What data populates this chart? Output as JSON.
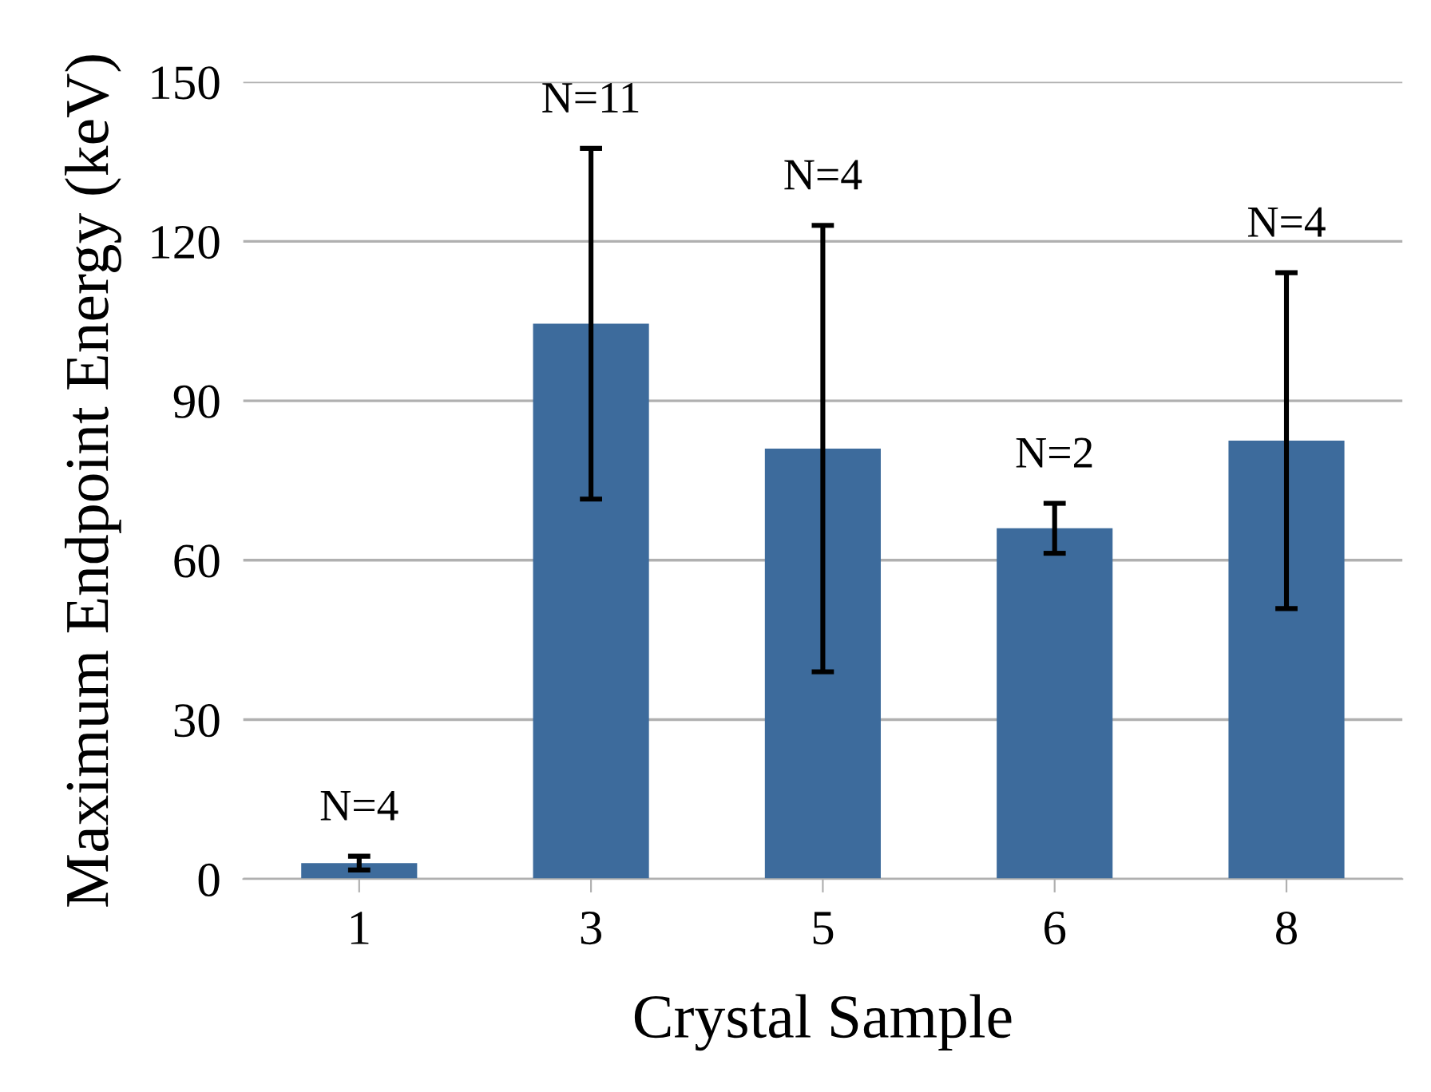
{
  "chart_data": {
    "type": "bar",
    "xlabel": "Crystal Sample",
    "ylabel": "Maximum Endpoint Energy (keV)",
    "categories": [
      "1",
      "3",
      "5",
      "6",
      "8"
    ],
    "values": [
      3.0,
      104.5,
      81.0,
      66.0,
      82.5
    ],
    "errors": [
      1.3,
      33,
      42,
      4.7,
      31.6
    ],
    "color": "#3d6b9c",
    "ylim": [
      0,
      150
    ],
    "yticks": [
      0,
      30,
      60,
      90,
      120,
      150
    ],
    "grid": "y",
    "annotations": [
      {
        "text": "N=4",
        "x": "1",
        "y": 4.3
      },
      {
        "text": "N=11",
        "x": "3",
        "y": 137.5
      },
      {
        "text": "N=4",
        "x": "5",
        "y": 123
      },
      {
        "text": "N=2",
        "x": "6",
        "y": 70.7
      },
      {
        "text": "N=4",
        "x": "8",
        "y": 114.1
      }
    ]
  }
}
